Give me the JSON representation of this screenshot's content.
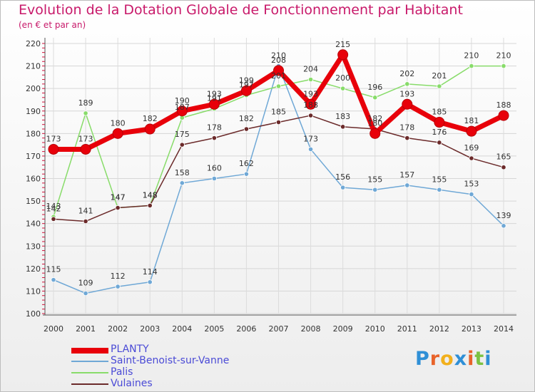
{
  "chart_data": {
    "type": "line",
    "title": "Evolution de la Dotation Globale de Fonctionnement par Habitant",
    "subtitle": "(en € et par an)",
    "x": [
      "2000",
      "2001",
      "2002",
      "2003",
      "2004",
      "2005",
      "2006",
      "2007",
      "2008",
      "2009",
      "2010",
      "2011",
      "2012",
      "2013",
      "2014"
    ],
    "ylim": [
      100,
      220
    ],
    "yticks": [
      100,
      110,
      120,
      130,
      140,
      150,
      160,
      170,
      180,
      190,
      200,
      210,
      220
    ],
    "grid": true,
    "legend_position": "bottom-left",
    "series": [
      {
        "name": "PLANTY",
        "color": "#e8000a",
        "values": [
          173,
          173,
          180,
          182,
          190,
          193,
          199,
          208,
          193,
          215,
          180,
          193,
          185,
          181,
          188
        ],
        "labels": [
          "173",
          "173",
          "180",
          "182",
          "190",
          "193",
          "199",
          "208",
          "193",
          "215",
          "180",
          "193",
          "185",
          "181",
          "188"
        ]
      },
      {
        "name": "Saint-Benoist-sur-Vanne",
        "color": "#6fa8d6",
        "values": [
          115,
          109,
          112,
          114,
          158,
          160,
          162,
          210,
          173,
          156,
          155,
          157,
          155,
          153,
          139
        ],
        "labels": [
          "115",
          "109",
          "112",
          "114",
          "158",
          "160",
          "162",
          "210",
          "173",
          "156",
          "155",
          "157",
          "155",
          "153",
          "139"
        ]
      },
      {
        "name": "Palis",
        "color": "#88dc6a",
        "values": [
          143,
          189,
          147,
          148,
          187,
          191,
          197,
          201,
          204,
          200,
          196,
          202,
          201,
          210,
          210
        ],
        "labels": [
          "143",
          "189",
          "147",
          "148",
          "187",
          "191",
          "197",
          "201",
          "204",
          "200",
          "196",
          "202",
          "201",
          "210",
          "210"
        ]
      },
      {
        "name": "Vulaines",
        "color": "#6b2a2a",
        "values": [
          142,
          141,
          147,
          148,
          175,
          178,
          182,
          185,
          188,
          183,
          182,
          178,
          176,
          169,
          165
        ],
        "labels": [
          "142",
          "141",
          "147",
          "148",
          "175",
          "178",
          "182",
          "185",
          "188",
          "183",
          "182",
          "178",
          "176",
          "169",
          "165"
        ]
      }
    ]
  },
  "brand": {
    "letters": [
      "P",
      "r",
      "o",
      "x",
      "i",
      "t",
      "i"
    ],
    "colors": [
      "#2f8fd6",
      "#e8632a",
      "#f2b01c",
      "#2f8fd6",
      "#e8632a",
      "#7cc242",
      "#2f8fd6"
    ]
  }
}
